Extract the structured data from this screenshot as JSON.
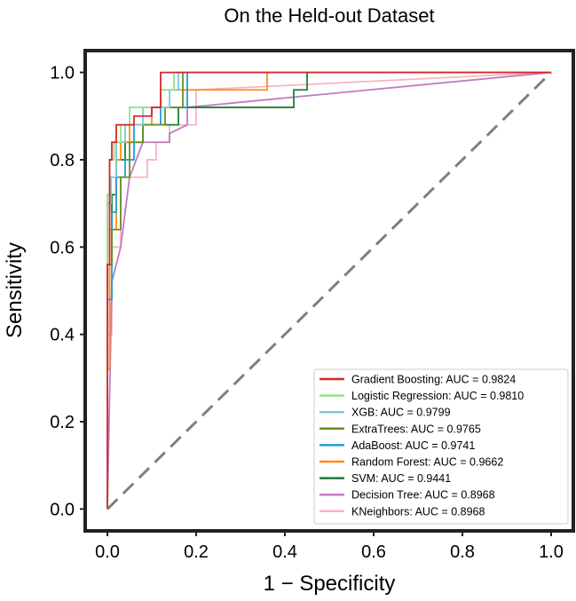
{
  "chart_data": {
    "type": "line",
    "title": "On the Held-out Dataset",
    "xlabel": "1 − Specificity",
    "ylabel": "Sensitivity",
    "xlim": [
      -0.05,
      1.05
    ],
    "ylim": [
      -0.05,
      1.05
    ],
    "xticks": [
      0.0,
      0.2,
      0.4,
      0.6,
      0.8,
      1.0
    ],
    "xtick_labels": [
      "0.0",
      "0.2",
      "0.4",
      "0.6",
      "0.8",
      "1.0"
    ],
    "yticks": [
      0.0,
      0.2,
      0.4,
      0.6,
      0.8,
      1.0
    ],
    "ytick_labels": [
      "0.0",
      "0.2",
      "0.4",
      "0.6",
      "0.8",
      "1.0"
    ],
    "grid": false,
    "legend_position": "bottom-right",
    "reference_line": {
      "x": [
        0,
        1
      ],
      "y": [
        0,
        1
      ],
      "color": "#808080",
      "style": "dashed"
    },
    "series": [
      {
        "name": "Gradient Boosting: AUC = 0.9824",
        "color": "#d62728",
        "x": [
          0,
          0,
          0.005,
          0.005,
          0.01,
          0.01,
          0.02,
          0.02,
          0.06,
          0.06,
          0.1,
          0.1,
          0.12,
          0.12,
          1.0
        ],
        "y": [
          0,
          0.56,
          0.56,
          0.8,
          0.8,
          0.84,
          0.84,
          0.88,
          0.88,
          0.9,
          0.9,
          0.92,
          0.92,
          1.0,
          1.0
        ]
      },
      {
        "name": "Logistic Regression: AUC = 0.9810",
        "color": "#98df8a",
        "x": [
          0,
          0,
          0.005,
          0.005,
          0.015,
          0.015,
          0.03,
          0.03,
          0.05,
          0.05,
          0.12,
          0.12,
          0.15,
          0.15,
          1.0
        ],
        "y": [
          0,
          0.72,
          0.72,
          0.8,
          0.8,
          0.84,
          0.84,
          0.88,
          0.88,
          0.92,
          0.92,
          0.96,
          0.96,
          1.0,
          1.0
        ]
      },
      {
        "name": "XGB: AUC = 0.9799",
        "color": "#7ec8d8",
        "x": [
          0,
          0,
          0.008,
          0.008,
          0.02,
          0.02,
          0.04,
          0.04,
          0.08,
          0.08,
          0.14,
          0.14,
          0.16,
          0.16,
          1.0
        ],
        "y": [
          0,
          0.7,
          0.7,
          0.76,
          0.76,
          0.84,
          0.84,
          0.88,
          0.88,
          0.92,
          0.92,
          0.96,
          0.96,
          1.0,
          1.0
        ]
      },
      {
        "name": "ExtraTrees: AUC = 0.9765",
        "color": "#6b8e23",
        "x": [
          0,
          0,
          0.01,
          0.01,
          0.03,
          0.03,
          0.05,
          0.05,
          0.08,
          0.08,
          0.13,
          0.13,
          0.17,
          0.17,
          1.0
        ],
        "y": [
          0,
          0.56,
          0.56,
          0.64,
          0.64,
          0.76,
          0.76,
          0.84,
          0.84,
          0.88,
          0.88,
          0.92,
          0.92,
          1.0,
          1.0
        ]
      },
      {
        "name": "AdaBoost: AUC = 0.9741",
        "color": "#1f9fd8",
        "x": [
          0,
          0,
          0.01,
          0.01,
          0.02,
          0.02,
          0.04,
          0.04,
          0.06,
          0.06,
          0.12,
          0.12,
          0.18,
          0.18,
          1.0
        ],
        "y": [
          0,
          0.48,
          0.48,
          0.68,
          0.68,
          0.76,
          0.76,
          0.8,
          0.8,
          0.88,
          0.88,
          0.92,
          0.92,
          1.0,
          1.0
        ]
      },
      {
        "name": "Random Forest: AUC = 0.9662",
        "color": "#ff8c1a",
        "x": [
          0,
          0,
          0.005,
          0.005,
          0.02,
          0.02,
          0.03,
          0.03,
          0.05,
          0.05,
          0.1,
          0.1,
          0.12,
          0.12,
          0.36,
          0.36,
          1.0
        ],
        "y": [
          0,
          0.32,
          0.32,
          0.64,
          0.64,
          0.8,
          0.8,
          0.84,
          0.84,
          0.88,
          0.88,
          0.92,
          0.92,
          0.96,
          0.96,
          1.0,
          1.0
        ]
      },
      {
        "name": "SVM: AUC = 0.9441",
        "color": "#1a7f3c",
        "x": [
          0,
          0,
          0.01,
          0.01,
          0.02,
          0.02,
          0.04,
          0.04,
          0.08,
          0.08,
          0.16,
          0.16,
          0.25,
          0.42,
          0.42,
          0.45,
          0.45,
          1.0
        ],
        "y": [
          0,
          0.56,
          0.56,
          0.72,
          0.72,
          0.8,
          0.8,
          0.84,
          0.84,
          0.88,
          0.88,
          0.92,
          0.92,
          0.92,
          0.96,
          0.96,
          1.0,
          1.0
        ]
      },
      {
        "name": "Decision Tree: AUC = 0.8968",
        "color": "#c07bc0",
        "x": [
          0,
          0.01,
          0.03,
          0.05,
          0.08,
          0.14,
          0.14,
          0.18,
          0.18,
          1.0
        ],
        "y": [
          0,
          0.52,
          0.6,
          0.76,
          0.84,
          0.84,
          0.86,
          0.88,
          0.92,
          1.0
        ]
      },
      {
        "name": "KNeighbors: AUC = 0.8968",
        "color": "#f8b4c0",
        "x": [
          0,
          0,
          0.01,
          0.01,
          0.03,
          0.03,
          0.06,
          0.09,
          0.09,
          0.11,
          0.11,
          0.14,
          0.14,
          0.2,
          0.2,
          1.0
        ],
        "y": [
          0,
          0.4,
          0.4,
          0.6,
          0.6,
          0.76,
          0.76,
          0.76,
          0.8,
          0.8,
          0.84,
          0.84,
          0.88,
          0.88,
          0.96,
          1.0
        ]
      }
    ]
  }
}
